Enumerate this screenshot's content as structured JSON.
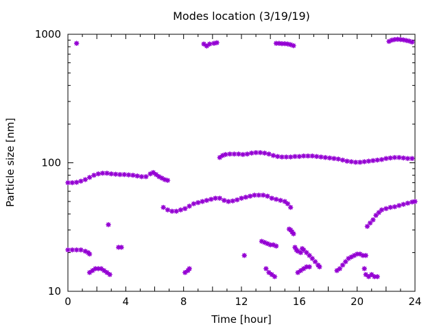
{
  "chart_data": {
    "type": "scatter",
    "title": "Modes location (3/19/19)",
    "xlabel": "Time [hour]",
    "ylabel": "Particle size [nm]",
    "xlim": [
      0,
      24
    ],
    "ylim": [
      10,
      1000
    ],
    "y_scale": "log",
    "x_ticks": [
      0,
      4,
      8,
      12,
      16,
      20,
      24
    ],
    "y_ticks": [
      10,
      100,
      1000
    ],
    "grid": false,
    "legend": "none",
    "marker_color": "#9400d3",
    "series": [
      {
        "points": [
          [
            0.0,
            70
          ],
          [
            0.3,
            70
          ],
          [
            0.6,
            70.5
          ],
          [
            0.9,
            72
          ],
          [
            1.2,
            74
          ],
          [
            1.5,
            77
          ],
          [
            1.8,
            80
          ],
          [
            2.1,
            82
          ],
          [
            2.4,
            83
          ],
          [
            2.7,
            83
          ],
          [
            3.0,
            82
          ],
          [
            3.3,
            81.5
          ],
          [
            3.6,
            81
          ],
          [
            3.9,
            81
          ],
          [
            4.2,
            80.5
          ],
          [
            4.5,
            80
          ],
          [
            4.8,
            79
          ],
          [
            5.1,
            78
          ],
          [
            5.4,
            78
          ],
          [
            5.7,
            82
          ],
          [
            5.9,
            84
          ],
          [
            6.1,
            81
          ],
          [
            6.3,
            78
          ],
          [
            6.5,
            76
          ],
          [
            6.7,
            74
          ],
          [
            6.9,
            73
          ],
          [
            10.5,
            110
          ],
          [
            10.7,
            114
          ],
          [
            10.9,
            116
          ],
          [
            11.2,
            117
          ],
          [
            11.5,
            117
          ],
          [
            11.8,
            117
          ],
          [
            12.1,
            116
          ],
          [
            12.4,
            117
          ],
          [
            12.7,
            119
          ],
          [
            13.0,
            120
          ],
          [
            13.3,
            120
          ],
          [
            13.6,
            119
          ],
          [
            13.9,
            117
          ],
          [
            14.2,
            114
          ],
          [
            14.5,
            112
          ],
          [
            14.8,
            111
          ],
          [
            15.1,
            111
          ],
          [
            15.4,
            111
          ],
          [
            15.7,
            112
          ],
          [
            16.0,
            112
          ],
          [
            16.3,
            113
          ],
          [
            16.6,
            113
          ],
          [
            16.9,
            113
          ],
          [
            17.2,
            112
          ],
          [
            17.5,
            111
          ],
          [
            17.8,
            110
          ],
          [
            18.1,
            109
          ],
          [
            18.4,
            108
          ],
          [
            18.7,
            107
          ],
          [
            19.0,
            105
          ],
          [
            19.3,
            103
          ],
          [
            19.6,
            102
          ],
          [
            19.9,
            101
          ],
          [
            20.2,
            101
          ],
          [
            20.5,
            102
          ],
          [
            20.8,
            103
          ],
          [
            21.1,
            104
          ],
          [
            21.4,
            105
          ],
          [
            21.7,
            106
          ],
          [
            22.0,
            108
          ],
          [
            22.3,
            109
          ],
          [
            22.6,
            110
          ],
          [
            22.9,
            110
          ],
          [
            23.2,
            109
          ],
          [
            23.5,
            108
          ],
          [
            23.8,
            108
          ],
          [
            6.6,
            45
          ],
          [
            6.9,
            43
          ],
          [
            7.2,
            42
          ],
          [
            7.5,
            42
          ],
          [
            7.8,
            43
          ],
          [
            8.1,
            44
          ],
          [
            8.4,
            46
          ],
          [
            8.7,
            48
          ],
          [
            9.0,
            49
          ],
          [
            9.3,
            50
          ],
          [
            9.6,
            51
          ],
          [
            9.9,
            52
          ],
          [
            10.2,
            53
          ],
          [
            10.5,
            53
          ],
          [
            10.8,
            51
          ],
          [
            11.1,
            50
          ],
          [
            11.4,
            50.5
          ],
          [
            11.7,
            51.5
          ],
          [
            12.0,
            53
          ],
          [
            12.3,
            54
          ],
          [
            12.6,
            55
          ],
          [
            12.9,
            56
          ],
          [
            13.2,
            56
          ],
          [
            13.5,
            56
          ],
          [
            13.8,
            55
          ],
          [
            14.1,
            53
          ],
          [
            14.4,
            52
          ],
          [
            14.7,
            51
          ],
          [
            15.0,
            50
          ],
          [
            15.2,
            48
          ],
          [
            15.4,
            45
          ],
          [
            20.7,
            32
          ],
          [
            20.9,
            34
          ],
          [
            21.1,
            36
          ],
          [
            21.3,
            39
          ],
          [
            21.5,
            41
          ],
          [
            21.7,
            43
          ],
          [
            22.0,
            44
          ],
          [
            22.3,
            45
          ],
          [
            22.6,
            45.5
          ],
          [
            22.9,
            46.5
          ],
          [
            23.2,
            47.5
          ],
          [
            23.5,
            48.5
          ],
          [
            23.8,
            49.5
          ],
          [
            24.0,
            50
          ],
          [
            0.0,
            21
          ],
          [
            0.3,
            21
          ],
          [
            0.6,
            21
          ],
          [
            0.9,
            21
          ],
          [
            1.2,
            20.5
          ],
          [
            1.4,
            20
          ],
          [
            1.5,
            19.5
          ],
          [
            1.5,
            14
          ],
          [
            1.7,
            14.5
          ],
          [
            1.9,
            15
          ],
          [
            2.1,
            15
          ],
          [
            2.3,
            15
          ],
          [
            2.5,
            14.5
          ],
          [
            2.7,
            14
          ],
          [
            2.9,
            13.5
          ],
          [
            2.8,
            33
          ],
          [
            3.5,
            22
          ],
          [
            3.7,
            22
          ],
          [
            8.1,
            14
          ],
          [
            8.3,
            14.5
          ],
          [
            8.4,
            15
          ],
          [
            12.2,
            19
          ],
          [
            13.4,
            24.5
          ],
          [
            13.6,
            24
          ],
          [
            13.8,
            23.5
          ],
          [
            14.0,
            23
          ],
          [
            14.2,
            23
          ],
          [
            14.4,
            22.5
          ],
          [
            13.7,
            15
          ],
          [
            13.9,
            14
          ],
          [
            14.1,
            13.5
          ],
          [
            14.3,
            13
          ],
          [
            15.3,
            30.5
          ],
          [
            15.4,
            30
          ],
          [
            15.5,
            29
          ],
          [
            15.6,
            28
          ],
          [
            15.7,
            22
          ],
          [
            15.8,
            21
          ],
          [
            15.9,
            20.5
          ],
          [
            16.1,
            20
          ],
          [
            16.2,
            21.5
          ],
          [
            16.3,
            21
          ],
          [
            16.5,
            20
          ],
          [
            16.7,
            19
          ],
          [
            16.9,
            18
          ],
          [
            17.1,
            17
          ],
          [
            17.3,
            16
          ],
          [
            17.4,
            15.5
          ],
          [
            15.9,
            14
          ],
          [
            16.1,
            14.5
          ],
          [
            16.3,
            15
          ],
          [
            16.5,
            15.5
          ],
          [
            16.7,
            15.5
          ],
          [
            18.6,
            14.5
          ],
          [
            18.8,
            15
          ],
          [
            19.0,
            16
          ],
          [
            19.2,
            17
          ],
          [
            19.4,
            18
          ],
          [
            19.6,
            18.5
          ],
          [
            19.8,
            19
          ],
          [
            20.0,
            19.5
          ],
          [
            20.2,
            19.5
          ],
          [
            20.4,
            19
          ],
          [
            20.6,
            19
          ],
          [
            20.5,
            15
          ],
          [
            20.6,
            13.5
          ],
          [
            20.8,
            13
          ],
          [
            21.0,
            13.5
          ],
          [
            21.2,
            13
          ],
          [
            21.4,
            13
          ],
          [
            0.6,
            850
          ],
          [
            9.4,
            840
          ],
          [
            9.6,
            810
          ],
          [
            9.8,
            840
          ],
          [
            10.1,
            850
          ],
          [
            10.3,
            860
          ],
          [
            14.4,
            850
          ],
          [
            14.6,
            850
          ],
          [
            14.8,
            845
          ],
          [
            15.0,
            845
          ],
          [
            15.2,
            840
          ],
          [
            15.4,
            830
          ],
          [
            15.6,
            815
          ],
          [
            22.2,
            880
          ],
          [
            22.4,
            900
          ],
          [
            22.6,
            910
          ],
          [
            22.8,
            915
          ],
          [
            23.0,
            910
          ],
          [
            23.2,
            905
          ],
          [
            23.4,
            895
          ],
          [
            23.6,
            885
          ],
          [
            23.8,
            870
          ]
        ]
      }
    ]
  }
}
